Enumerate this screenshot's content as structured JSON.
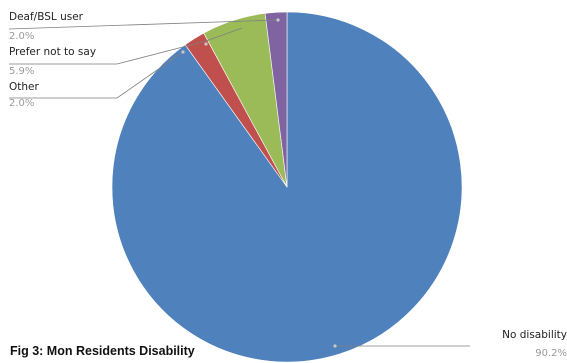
{
  "chart_data": {
    "type": "pie",
    "caption": "Fig 3: Mon Residents Disability",
    "slices": [
      {
        "label": "No disability",
        "value": 90.2,
        "value_label": "90.2%",
        "color": "#4f81bd"
      },
      {
        "label": "Other",
        "value": 2.0,
        "value_label": "2.0%",
        "color": "#c0504d"
      },
      {
        "label": "Prefer not to say",
        "value": 5.9,
        "value_label": "5.9%",
        "color": "#9bbb59"
      },
      {
        "label": "Deaf/BSL user",
        "value": 2.0,
        "value_label": "2.0%",
        "color": "#8064a2"
      }
    ],
    "legend": "none",
    "data_labels": "outside with leader lines"
  }
}
